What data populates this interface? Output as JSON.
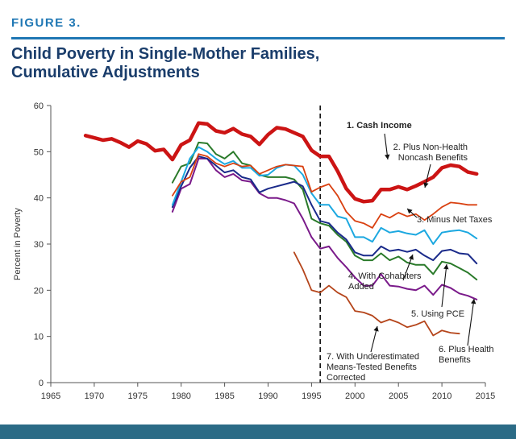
{
  "figure_label": "FIGURE 3.",
  "title_line1": "Child Poverty in Single-Mother Families,",
  "title_line2": "Cumulative Adjustments",
  "chart_data": {
    "type": "line",
    "title": "Child Poverty in Single-Mother Families, Cumulative Adjustments",
    "xlabel": "",
    "ylabel": "Percent in Poverty",
    "xlim": [
      1965,
      2015
    ],
    "ylim": [
      0,
      60
    ],
    "x_ticks": [
      "1965",
      "1970",
      "1975",
      "1980",
      "1985",
      "1990",
      "1995",
      "2000",
      "2005",
      "2010",
      "2015"
    ],
    "y_ticks": [
      "0",
      "10",
      "20",
      "30",
      "40",
      "50",
      "60"
    ],
    "vline_x": 1996,
    "grid": false,
    "series": [
      {
        "name": "1. Cash Income",
        "color": "#cc1414",
        "width": 4.5,
        "x": [
          1969,
          1970,
          1971,
          1972,
          1973,
          1974,
          1975,
          1976,
          1977,
          1978,
          1979,
          1980,
          1981,
          1982,
          1983,
          1984,
          1985,
          1986,
          1987,
          1988,
          1989,
          1990,
          1991,
          1992,
          1993,
          1994,
          1995,
          1996,
          1997,
          1998,
          1999,
          2000,
          2001,
          2002,
          2003,
          2004,
          2005,
          2006,
          2007,
          2008,
          2009,
          2010,
          2011,
          2012,
          2013,
          2014
        ],
        "y": [
          53.5,
          53,
          52.5,
          52.8,
          52,
          51,
          52.3,
          51.7,
          50.2,
          50.5,
          48.3,
          51.5,
          52.5,
          56.2,
          56,
          54.5,
          54.1,
          55,
          53.8,
          53.3,
          51.6,
          53.7,
          55.2,
          54.9,
          54.1,
          53.3,
          50.3,
          49,
          49,
          45.8,
          42,
          39.8,
          39.2,
          39.4,
          41.8,
          41.8,
          42.4,
          41.8,
          42.6,
          43.5,
          44.5,
          46.5,
          47.1,
          46.8,
          45.6,
          45.2
        ]
      },
      {
        "name": "2. Plus Non-Health Noncash Benefits",
        "color": "#d94010",
        "width": 1.8,
        "x": [
          1979,
          1980,
          1981,
          1982,
          1983,
          1984,
          1985,
          1986,
          1987,
          1988,
          1989,
          1990,
          1991,
          1992,
          1993,
          1994,
          1995,
          1996,
          1997,
          1998,
          1999,
          2000,
          2001,
          2002,
          2003,
          2004,
          2005,
          2006,
          2007,
          2008,
          2009,
          2010,
          2011,
          2012,
          2013,
          2014
        ],
        "y": [
          40.5,
          43.5,
          44.5,
          49.5,
          49,
          47.5,
          46.8,
          47.5,
          46.8,
          47,
          45.2,
          46,
          46.8,
          47.2,
          47,
          46.8,
          41.3,
          42.3,
          43,
          40.5,
          37,
          35,
          34.5,
          33.5,
          36.5,
          35.7,
          36.8,
          36,
          36.5,
          35.2,
          36.5,
          38,
          39,
          38.8,
          38.5,
          38.5
        ]
      },
      {
        "name": "3. Minus Net Taxes",
        "color": "#1ca8e0",
        "width": 2.0,
        "x": [
          1979,
          1980,
          1981,
          1982,
          1983,
          1984,
          1985,
          1986,
          1987,
          1988,
          1989,
          1990,
          1991,
          1992,
          1993,
          1994,
          1995,
          1996,
          1997,
          1998,
          1999,
          2000,
          2001,
          2002,
          2003,
          2004,
          2005,
          2006,
          2007,
          2008,
          2009,
          2010,
          2011,
          2012,
          2013,
          2014
        ],
        "y": [
          38.5,
          43.5,
          48.5,
          51,
          50,
          48.5,
          47.3,
          48,
          46.5,
          46.5,
          44.8,
          45,
          46.5,
          47.2,
          47,
          45,
          41,
          38.5,
          38.5,
          36,
          35.5,
          31.5,
          31.5,
          30.5,
          33.5,
          32.5,
          32.8,
          32.3,
          32,
          33,
          30,
          32.5,
          32.8,
          33,
          32.5,
          31.2
        ]
      },
      {
        "name": "4. With Cohabiters Added",
        "color": "#1a2a8a",
        "width": 2.0,
        "x": [
          1979,
          1980,
          1981,
          1982,
          1983,
          1984,
          1985,
          1986,
          1987,
          1988,
          1989,
          1990,
          1991,
          1992,
          1993,
          1994,
          1995,
          1996,
          1997,
          1998,
          1999,
          2000,
          2001,
          2002,
          2003,
          2004,
          2005,
          2006,
          2007,
          2008,
          2009,
          2010,
          2011,
          2012,
          2013,
          2014
        ],
        "y": [
          38,
          42.5,
          46.5,
          49,
          48.5,
          47,
          45.5,
          46,
          44.5,
          44,
          41.2,
          42,
          42.5,
          43,
          43.5,
          42.5,
          38.5,
          35,
          34.5,
          32.5,
          31,
          28.2,
          27.5,
          27.5,
          29.5,
          28.5,
          28.8,
          28.3,
          28.8,
          27.5,
          26.5,
          28.5,
          28.8,
          28,
          27.8,
          25.8
        ]
      },
      {
        "name": "5. Using PCE",
        "color": "#2a7a2a",
        "width": 2.0,
        "x": [
          1979,
          1980,
          1981,
          1982,
          1983,
          1984,
          1985,
          1986,
          1987,
          1988,
          1989,
          1990,
          1991,
          1992,
          1993,
          1994,
          1995,
          1996,
          1997,
          1998,
          1999,
          2000,
          2001,
          2002,
          2003,
          2004,
          2005,
          2006,
          2007,
          2008,
          2009,
          2010,
          2011,
          2012,
          2013,
          2014
        ],
        "y": [
          43.3,
          46.8,
          47.5,
          52,
          51.8,
          49.5,
          48.5,
          50,
          47.5,
          47,
          45,
          44.5,
          44.5,
          44.5,
          44,
          41.8,
          35.5,
          34.5,
          34,
          32,
          30.5,
          27.5,
          26.5,
          26.5,
          28,
          26.5,
          27.3,
          26,
          25.5,
          25.5,
          23.5,
          26.2,
          25.8,
          24.8,
          23.8,
          22.3
        ]
      },
      {
        "name": "6. Plus Health Benefits",
        "color": "#7a1a8a",
        "width": 2.0,
        "x": [
          1979,
          1980,
          1981,
          1982,
          1983,
          1984,
          1985,
          1986,
          1987,
          1988,
          1989,
          1990,
          1991,
          1992,
          1993,
          1994,
          1995,
          1996,
          1997,
          1998,
          1999,
          2000,
          2001,
          2002,
          2003,
          2004,
          2005,
          2006,
          2007,
          2008,
          2009,
          2010,
          2011,
          2012,
          2013,
          2014
        ],
        "y": [
          37,
          42,
          43,
          48.5,
          48.5,
          46,
          44.5,
          45.2,
          43.8,
          43.5,
          41,
          40,
          40,
          39.5,
          38.8,
          35.5,
          31.5,
          29,
          29.5,
          27,
          25,
          22.8,
          21,
          21,
          23.5,
          21,
          20.8,
          20.3,
          20,
          21,
          19,
          21.2,
          20.5,
          19.3,
          18.8,
          18
        ]
      },
      {
        "name": "7. With Underestimated Means-Tested Benefits Corrected",
        "color": "#b5451b",
        "width": 1.8,
        "x": [
          1993,
          1994,
          1995,
          1996,
          1997,
          1998,
          1999,
          2000,
          2001,
          2002,
          2003,
          2004,
          2005,
          2006,
          2007,
          2008,
          2009,
          2010,
          2011,
          2012
        ],
        "y": [
          28.2,
          24.5,
          20,
          19.5,
          21,
          19.5,
          18.5,
          15.5,
          15.2,
          14.5,
          13,
          13.7,
          13,
          12,
          12.5,
          13.3,
          10.2,
          11.3,
          10.8,
          10.6
        ]
      }
    ],
    "annotations": [
      {
        "lines": [
          "1. Cash Income"
        ],
        "bold": true
      },
      {
        "lines": [
          "2. Plus Non-Health",
          "Noncash Benefits"
        ]
      },
      {
        "lines": [
          "3. Minus Net Taxes"
        ]
      },
      {
        "lines": [
          "4. With Cohabiters",
          "Added"
        ]
      },
      {
        "lines": [
          "5. Using PCE"
        ]
      },
      {
        "lines": [
          "6. Plus Health",
          "Benefits"
        ]
      },
      {
        "lines": [
          "7. With Underestimated",
          "Means-Tested Benefits",
          "Corrected"
        ]
      }
    ]
  }
}
